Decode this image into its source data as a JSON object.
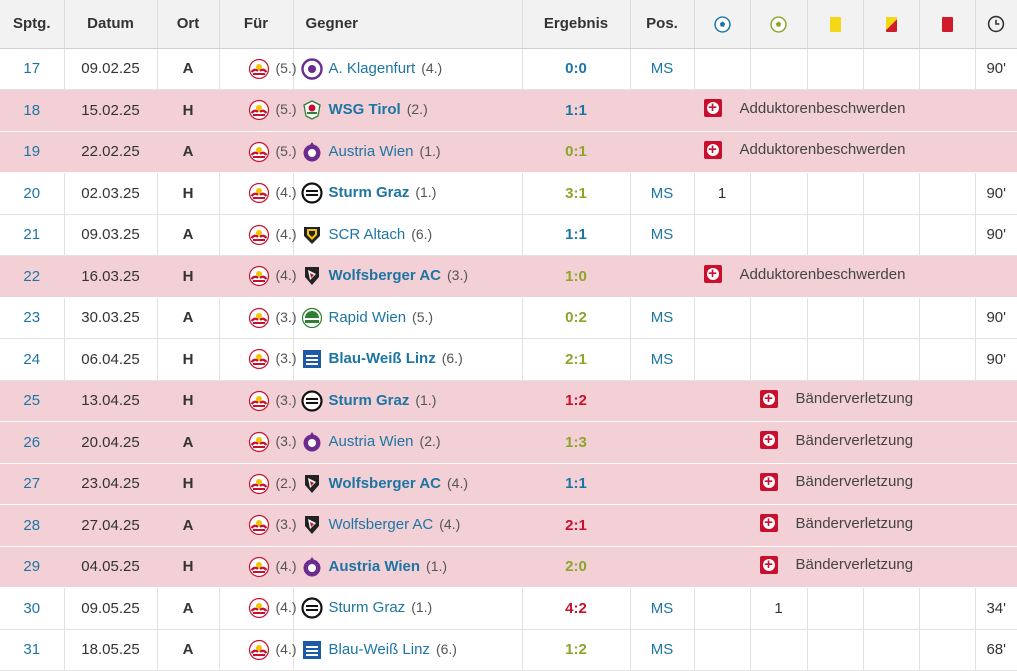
{
  "columns": {
    "sptg": "Sptg.",
    "datum": "Datum",
    "ort": "Ort",
    "fuer": "Für",
    "gegner": "Gegner",
    "ergebnis": "Ergebnis",
    "pos": "Pos.",
    "goals_icon": "soccer-ball-icon",
    "assists_icon": "assist-ball-icon",
    "yellow_icon": "yellow-card-icon",
    "yellowred_icon": "yellow-red-card-icon",
    "red_icon": "red-card-icon",
    "minutes_icon": "clock-icon"
  },
  "colors": {
    "link": "#1d75a3",
    "win": "#8ca52a",
    "loss": "#c8102e",
    "injured_row": "#f2d0d5",
    "header_bg": "#f2f2f2"
  },
  "rows": [
    {
      "sptg": "17",
      "datum": "09.02.25",
      "ort": "A",
      "fuer_rank": "(5.)",
      "opponent": "A. Klagenfurt",
      "opp_rank": "(4.)",
      "opp_logo": "klagenfurt",
      "result": "0:0",
      "res_type": "draw",
      "pos": "MS",
      "goals": "",
      "assists": "",
      "yellow": "",
      "yellowred": "",
      "red": "",
      "minutes": "90'"
    },
    {
      "sptg": "18",
      "datum": "15.02.25",
      "ort": "H",
      "fuer_rank": "(5.)",
      "opponent": "WSG Tirol",
      "opp_rank": "(2.)",
      "opp_logo": "tirol",
      "result": "1:1",
      "res_type": "draw",
      "injury": "Adduktorenbeschwerden",
      "inj_col": 1
    },
    {
      "sptg": "19",
      "datum": "22.02.25",
      "ort": "A",
      "fuer_rank": "(5.)",
      "opponent": "Austria Wien",
      "opp_rank": "(1.)",
      "opp_logo": "austria",
      "result": "0:1",
      "res_type": "win",
      "injury": "Adduktorenbeschwerden",
      "inj_col": 1
    },
    {
      "sptg": "20",
      "datum": "02.03.25",
      "ort": "H",
      "fuer_rank": "(4.)",
      "opponent": "Sturm Graz",
      "opp_rank": "(1.)",
      "opp_logo": "sturm",
      "result": "3:1",
      "res_type": "win",
      "pos": "MS",
      "goals": "1",
      "assists": "",
      "yellow": "",
      "yellowred": "",
      "red": "",
      "minutes": "90'"
    },
    {
      "sptg": "21",
      "datum": "09.03.25",
      "ort": "A",
      "fuer_rank": "(4.)",
      "opponent": "SCR Altach",
      "opp_rank": "(6.)",
      "opp_logo": "altach",
      "result": "1:1",
      "res_type": "draw",
      "pos": "MS",
      "goals": "",
      "assists": "",
      "yellow": "",
      "yellowred": "",
      "red": "",
      "minutes": "90'"
    },
    {
      "sptg": "22",
      "datum": "16.03.25",
      "ort": "H",
      "fuer_rank": "(4.)",
      "opponent": "Wolfsberger AC",
      "opp_rank": "(3.)",
      "opp_logo": "wolfsberger",
      "result": "1:0",
      "res_type": "win",
      "injury": "Adduktorenbeschwerden",
      "inj_col": 1
    },
    {
      "sptg": "23",
      "datum": "30.03.25",
      "ort": "A",
      "fuer_rank": "(3.)",
      "opponent": "Rapid Wien",
      "opp_rank": "(5.)",
      "opp_logo": "rapid",
      "result": "0:2",
      "res_type": "win",
      "pos": "MS",
      "goals": "",
      "assists": "",
      "yellow": "",
      "yellowred": "",
      "red": "",
      "minutes": "90'"
    },
    {
      "sptg": "24",
      "datum": "06.04.25",
      "ort": "H",
      "fuer_rank": "(3.)",
      "opponent": "Blau-Weiß Linz",
      "opp_rank": "(6.)",
      "opp_logo": "linz",
      "result": "2:1",
      "res_type": "win",
      "pos": "MS",
      "goals": "",
      "assists": "",
      "yellow": "",
      "yellowred": "",
      "red": "",
      "minutes": "90'"
    },
    {
      "sptg": "25",
      "datum": "13.04.25",
      "ort": "H",
      "fuer_rank": "(3.)",
      "opponent": "Sturm Graz",
      "opp_rank": "(1.)",
      "opp_logo": "sturm",
      "result": "1:2",
      "res_type": "loss",
      "injury": "Bänderverletzung",
      "inj_col": 2
    },
    {
      "sptg": "26",
      "datum": "20.04.25",
      "ort": "A",
      "fuer_rank": "(3.)",
      "opponent": "Austria Wien",
      "opp_rank": "(2.)",
      "opp_logo": "austria",
      "result": "1:3",
      "res_type": "win",
      "injury": "Bänderverletzung",
      "inj_col": 2
    },
    {
      "sptg": "27",
      "datum": "23.04.25",
      "ort": "H",
      "fuer_rank": "(2.)",
      "opponent": "Wolfsberger AC",
      "opp_rank": "(4.)",
      "opp_logo": "wolfsberger",
      "result": "1:1",
      "res_type": "draw",
      "injury": "Bänderverletzung",
      "inj_col": 2
    },
    {
      "sptg": "28",
      "datum": "27.04.25",
      "ort": "A",
      "fuer_rank": "(3.)",
      "opponent": "Wolfsberger AC",
      "opp_rank": "(4.)",
      "opp_logo": "wolfsberger",
      "result": "2:1",
      "res_type": "loss",
      "injury": "Bänderverletzung",
      "inj_col": 2
    },
    {
      "sptg": "29",
      "datum": "04.05.25",
      "ort": "H",
      "fuer_rank": "(4.)",
      "opponent": "Austria Wien",
      "opp_rank": "(1.)",
      "opp_logo": "austria",
      "result": "2:0",
      "res_type": "win",
      "injury": "Bänderverletzung",
      "inj_col": 2
    },
    {
      "sptg": "30",
      "datum": "09.05.25",
      "ort": "A",
      "fuer_rank": "(4.)",
      "opponent": "Sturm Graz",
      "opp_rank": "(1.)",
      "opp_logo": "sturm",
      "result": "4:2",
      "res_type": "loss",
      "pos": "MS",
      "goals": "",
      "assists": "1",
      "yellow": "",
      "yellowred": "",
      "red": "",
      "minutes": "34'"
    },
    {
      "sptg": "31",
      "datum": "18.05.25",
      "ort": "A",
      "fuer_rank": "(4.)",
      "opponent": "Blau-Weiß Linz",
      "opp_rank": "(6.)",
      "opp_logo": "linz",
      "result": "1:2",
      "res_type": "win",
      "pos": "MS",
      "goals": "",
      "assists": "",
      "yellow": "",
      "yellowred": "",
      "red": "",
      "minutes": "68'"
    }
  ]
}
